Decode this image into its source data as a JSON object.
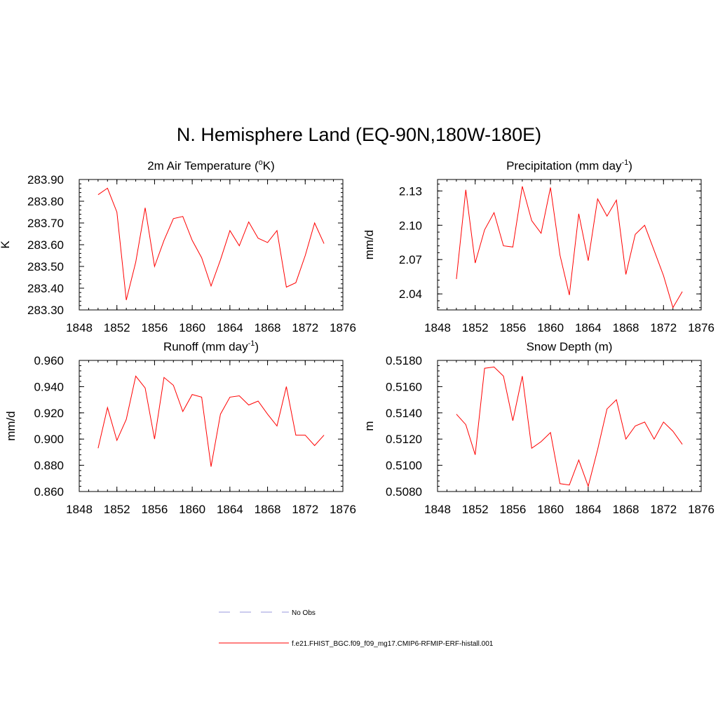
{
  "title": "N. Hemisphere Land (EQ-90N,180W-180E)",
  "series_color": "#ff0000",
  "obs_color": "#9999dd",
  "legend": {
    "obs_label": "No Obs",
    "model_label": "f.e21.FHIST_BGC.f09_f09_mg17.CMIP6-RFMIP-ERF-histall.001"
  },
  "chart_data": [
    {
      "type": "line",
      "title_main": "2m Air Temperature (",
      "title_sup": "o",
      "title_tail": "K)",
      "ylabel": "K",
      "xlim": [
        1848,
        1876
      ],
      "xticks": [
        "1848",
        "1852",
        "1856",
        "1860",
        "1864",
        "1868",
        "1872",
        "1876"
      ],
      "ylim": [
        283.3,
        283.9
      ],
      "yticks": [
        "283.30",
        "283.40",
        "283.50",
        "283.60",
        "283.70",
        "283.80",
        "283.90"
      ],
      "x": [
        1850,
        1851,
        1852,
        1853,
        1854,
        1855,
        1856,
        1857,
        1858,
        1859,
        1860,
        1861,
        1862,
        1863,
        1864,
        1865,
        1866,
        1867,
        1868,
        1869,
        1870,
        1871,
        1872,
        1873,
        1874
      ],
      "values": [
        283.83,
        283.86,
        283.75,
        283.345,
        283.52,
        283.77,
        283.5,
        283.62,
        283.72,
        283.73,
        283.62,
        283.54,
        283.41,
        283.53,
        283.665,
        283.595,
        283.705,
        283.63,
        283.61,
        283.665,
        283.405,
        283.425,
        283.55,
        283.7,
        283.605
      ]
    },
    {
      "type": "line",
      "title_main": "Precipitation (mm day",
      "title_sup": "-1",
      "title_tail": ")",
      "ylabel": "mm/d",
      "xlim": [
        1848,
        1876
      ],
      "xticks": [
        "1848",
        "1852",
        "1856",
        "1860",
        "1864",
        "1868",
        "1872",
        "1876"
      ],
      "ylim": [
        2.026,
        2.14
      ],
      "yticks": [
        "2.04",
        "2.07",
        "2.10",
        "2.13"
      ],
      "x": [
        1850,
        1851,
        1852,
        1853,
        1854,
        1855,
        1856,
        1857,
        1858,
        1859,
        1860,
        1861,
        1862,
        1863,
        1864,
        1865,
        1866,
        1867,
        1868,
        1869,
        1870,
        1871,
        1872,
        1873,
        1874
      ],
      "values": [
        2.053,
        2.131,
        2.067,
        2.096,
        2.111,
        2.082,
        2.081,
        2.134,
        2.104,
        2.093,
        2.133,
        2.074,
        2.039,
        2.11,
        2.069,
        2.123,
        2.108,
        2.122,
        2.057,
        2.092,
        2.1,
        2.078,
        2.056,
        2.028,
        2.042
      ]
    },
    {
      "type": "line",
      "title_main": "Runoff (mm day",
      "title_sup": "-1",
      "title_tail": ")",
      "ylabel": "mm/d",
      "xlim": [
        1848,
        1876
      ],
      "xticks": [
        "1848",
        "1852",
        "1856",
        "1860",
        "1864",
        "1868",
        "1872",
        "1876"
      ],
      "ylim": [
        0.86,
        0.96
      ],
      "yticks": [
        "0.860",
        "0.880",
        "0.900",
        "0.920",
        "0.940",
        "0.960"
      ],
      "x": [
        1850,
        1851,
        1852,
        1853,
        1854,
        1855,
        1856,
        1857,
        1858,
        1859,
        1860,
        1861,
        1862,
        1863,
        1864,
        1865,
        1866,
        1867,
        1868,
        1869,
        1870,
        1871,
        1872,
        1873,
        1874
      ],
      "values": [
        0.893,
        0.924,
        0.899,
        0.915,
        0.948,
        0.939,
        0.9,
        0.947,
        0.941,
        0.921,
        0.934,
        0.932,
        0.879,
        0.919,
        0.932,
        0.933,
        0.926,
        0.929,
        0.919,
        0.91,
        0.94,
        0.903,
        0.903,
        0.895,
        0.903
      ]
    },
    {
      "type": "line",
      "title_main": "Snow Depth (m)",
      "title_sup": "",
      "title_tail": "",
      "ylabel": "m",
      "xlim": [
        1848,
        1876
      ],
      "xticks": [
        "1848",
        "1852",
        "1856",
        "1860",
        "1864",
        "1868",
        "1872",
        "1876"
      ],
      "ylim": [
        0.508,
        0.518
      ],
      "yticks": [
        "0.5080",
        "0.5100",
        "0.5120",
        "0.5140",
        "0.5160",
        "0.5180"
      ],
      "x": [
        1850,
        1851,
        1852,
        1853,
        1854,
        1855,
        1856,
        1857,
        1858,
        1859,
        1860,
        1861,
        1862,
        1863,
        1864,
        1865,
        1866,
        1867,
        1868,
        1869,
        1870,
        1871,
        1872,
        1873,
        1874
      ],
      "values": [
        0.5139,
        0.5131,
        0.5108,
        0.5174,
        0.5175,
        0.5168,
        0.5134,
        0.5168,
        0.5113,
        0.5118,
        0.5125,
        0.5086,
        0.5085,
        0.5104,
        0.5084,
        0.5112,
        0.5143,
        0.515,
        0.512,
        0.513,
        0.5133,
        0.512,
        0.5133,
        0.5126,
        0.5116
      ]
    }
  ]
}
